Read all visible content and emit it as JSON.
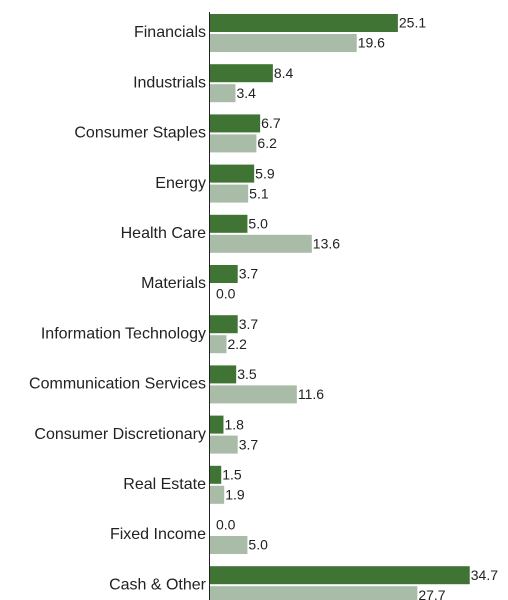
{
  "chart_data": {
    "type": "bar",
    "orientation": "horizontal",
    "categories": [
      "Financials",
      "Industrials",
      "Consumer Staples",
      "Energy",
      "Health Care",
      "Materials",
      "Information Technology",
      "Communication Services",
      "Consumer Discretionary",
      "Real Estate",
      "Fixed Income",
      "Cash & Other"
    ],
    "series": [
      {
        "values": [
          25.1,
          8.4,
          6.7,
          5.9,
          5.0,
          3.7,
          3.7,
          3.5,
          1.8,
          1.5,
          0.0,
          34.7
        ],
        "labels": [
          "25.1",
          "8.4",
          "6.7",
          "5.9",
          "5.0",
          "3.7",
          "3.7",
          "3.5",
          "1.8",
          "1.5",
          "0.0",
          "34.7"
        ],
        "color": "#3f7434"
      },
      {
        "values": [
          19.6,
          3.4,
          6.2,
          5.1,
          13.6,
          0.0,
          2.2,
          11.6,
          3.7,
          1.9,
          5.0,
          27.7
        ],
        "labels": [
          "19.6",
          "3.4",
          "6.2",
          "5.1",
          "13.6",
          "0.0",
          "2.2",
          "11.6",
          "3.7",
          "1.9",
          "5.0",
          "27.7"
        ],
        "color": "#a8bca8"
      }
    ],
    "xlim": [
      0,
      35
    ],
    "grid": false,
    "legend": "none"
  }
}
